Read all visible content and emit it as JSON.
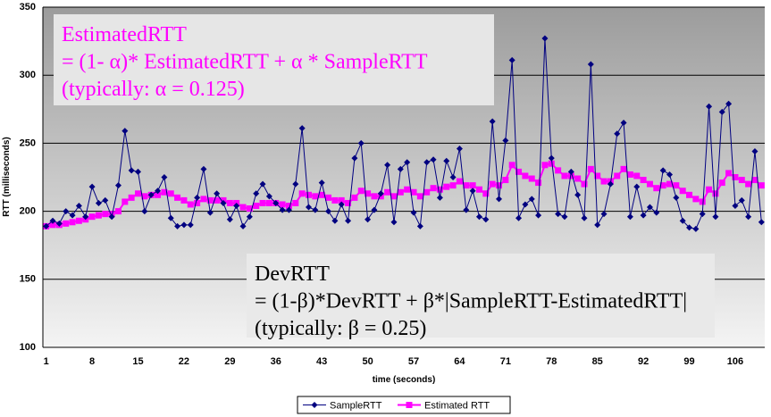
{
  "chart_data": {
    "type": "line",
    "xlabel": "time (seconds)",
    "ylabel": "RTT (milliseconds)",
    "categories": [
      "1",
      null,
      null,
      null,
      null,
      null,
      null,
      "8",
      null,
      null,
      null,
      null,
      null,
      null,
      "15",
      null,
      null,
      null,
      null,
      null,
      null,
      "22",
      null,
      null,
      null,
      null,
      null,
      null,
      "29",
      null,
      null,
      null,
      null,
      null,
      null,
      "36",
      null,
      null,
      null,
      null,
      null,
      null,
      "43",
      null,
      null,
      null,
      null,
      null,
      null,
      "50",
      null,
      null,
      null,
      null,
      null,
      null,
      "57",
      null,
      null,
      null,
      null,
      null,
      null,
      "64",
      null,
      null,
      null,
      null,
      null,
      null,
      "71",
      null,
      null,
      null,
      null,
      null,
      null,
      "78",
      null,
      null,
      null,
      null,
      null,
      null,
      "85",
      null,
      null,
      null,
      null,
      null,
      null,
      "92",
      null,
      null,
      null,
      null,
      null,
      null,
      "99",
      null,
      null,
      null,
      null,
      null,
      null,
      "106",
      null,
      null,
      null,
      null
    ],
    "series": [
      {
        "name": "SampleRTT",
        "color": "#000080",
        "marker": "diamond",
        "values": [
          189,
          193,
          191,
          200,
          197,
          204,
          196,
          218,
          206,
          208,
          196,
          219,
          259,
          230,
          229,
          200,
          212,
          215,
          225,
          195,
          189,
          190,
          190,
          210,
          231,
          199,
          213,
          206,
          194,
          204,
          189,
          196,
          213,
          220,
          211,
          206,
          201,
          201,
          220,
          261,
          203,
          201,
          221,
          200,
          193,
          205,
          193,
          239,
          250,
          194,
          201,
          213,
          234,
          192,
          231,
          236,
          199,
          189,
          236,
          238,
          210,
          237,
          225,
          246,
          201,
          215,
          196,
          194,
          266,
          209,
          252,
          311,
          195,
          205,
          209,
          197,
          327,
          239,
          198,
          196,
          229,
          212,
          195,
          308,
          190,
          198,
          220,
          257,
          265,
          196,
          218,
          197,
          203,
          199,
          230,
          227,
          210,
          193,
          188,
          187,
          198,
          277,
          196,
          273,
          279,
          204,
          208,
          196,
          244,
          192
        ]
      },
      {
        "name": "Estimated RTT",
        "color": "#ff00ff",
        "marker": "square",
        "values": [
          189,
          190,
          190,
          191,
          192,
          193,
          194,
          196,
          197,
          198,
          198,
          200,
          207,
          210,
          213,
          211,
          212,
          212,
          214,
          213,
          210,
          208,
          205,
          206,
          209,
          208,
          208,
          208,
          206,
          206,
          203,
          202,
          204,
          206,
          206,
          206,
          205,
          204,
          206,
          213,
          212,
          211,
          212,
          210,
          208,
          208,
          206,
          210,
          215,
          213,
          211,
          211,
          214,
          211,
          214,
          216,
          214,
          211,
          214,
          217,
          216,
          218,
          219,
          222,
          219,
          219,
          216,
          213,
          220,
          219,
          223,
          234,
          229,
          226,
          224,
          221,
          234,
          235,
          230,
          226,
          226,
          224,
          220,
          231,
          226,
          222,
          222,
          226,
          231,
          227,
          226,
          223,
          220,
          217,
          219,
          220,
          219,
          215,
          212,
          209,
          207,
          216,
          213,
          221,
          228,
          225,
          223,
          220,
          223,
          219
        ]
      }
    ],
    "ylim": [
      100,
      350
    ],
    "yticks": [
      100,
      150,
      200,
      250,
      300,
      350
    ],
    "grid": true,
    "annotations": [
      {
        "lines": [
          "EstimatedRTT",
          "= (1- α)* EstimatedRTT + α * SampleRTT",
          "(typically: α = 0.125)"
        ]
      },
      {
        "lines": [
          "DevRTT",
          "= (1-β)*DevRTT + β*|SampleRTT-EstimatedRTT|",
          "(typically: β = 0.25)"
        ]
      }
    ]
  }
}
